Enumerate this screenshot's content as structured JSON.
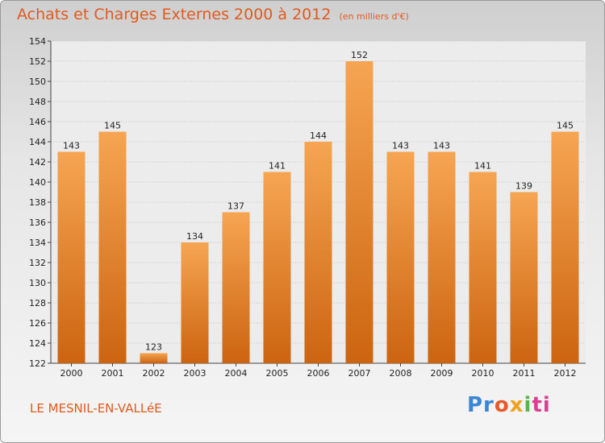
{
  "title": "Achats et Charges Externes 2000 à 2012",
  "subtitle": "(en milliers d'€)",
  "commune": "LE MESNIL-EN-VALLéE",
  "brand": {
    "p1": "Pr",
    "p2": "o",
    "p3": "x",
    "p4": "i",
    "p5": "ti"
  },
  "colors": {
    "bar_top": "#f6a552",
    "bar_bottom": "#cc6410",
    "title": "#e05a1f"
  },
  "chart_data": {
    "type": "bar",
    "categories": [
      "2000",
      "2001",
      "2002",
      "2003",
      "2004",
      "2005",
      "2006",
      "2007",
      "2008",
      "2009",
      "2010",
      "2011",
      "2012"
    ],
    "values": [
      143,
      145,
      123,
      134,
      137,
      141,
      144,
      152,
      143,
      143,
      141,
      139,
      145
    ],
    "ylim": [
      122,
      154
    ],
    "yticks": [
      122,
      124,
      126,
      128,
      130,
      132,
      134,
      136,
      138,
      140,
      142,
      144,
      146,
      148,
      150,
      152,
      154
    ],
    "grid": true
  }
}
